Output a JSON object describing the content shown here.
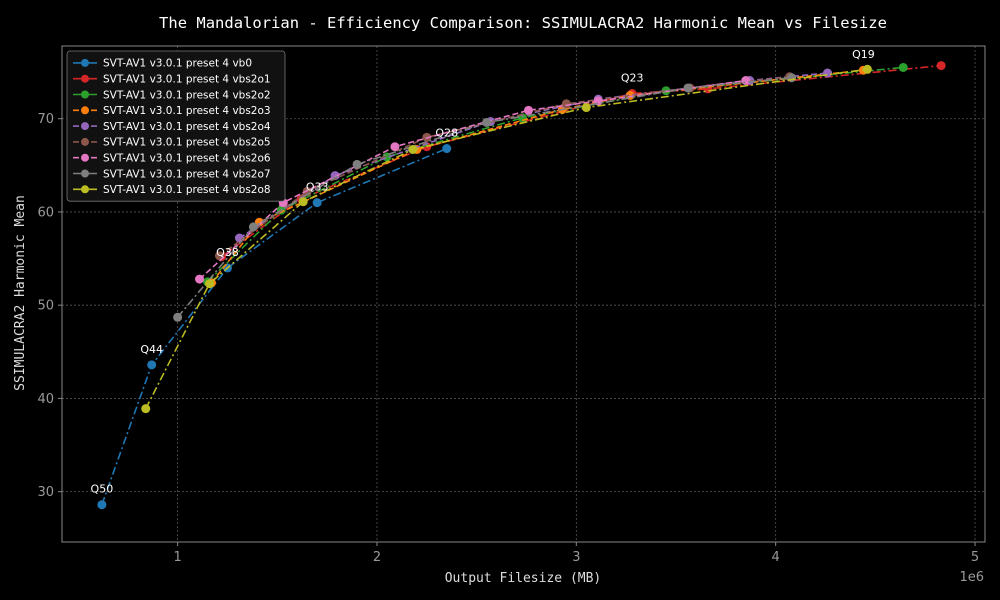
{
  "chart_data": {
    "type": "line",
    "title": "The Mandalorian - Efficiency Comparison: SSIMULACRA2 Harmonic Mean vs Filesize",
    "xlabel": "Output Filesize (MB)",
    "ylabel": "SSIMULACRA2 Harmonic Mean",
    "x_offset_label": "1e6",
    "xlim": [
      420000,
      5050000
    ],
    "ylim": [
      24.6,
      77.8
    ],
    "xticks": [
      1000000,
      2000000,
      3000000,
      4000000,
      5000000
    ],
    "xtick_labels": [
      "1",
      "2",
      "3",
      "4",
      "5"
    ],
    "yticks": [
      30,
      40,
      50,
      60,
      70
    ],
    "ytick_labels": [
      "30",
      "40",
      "50",
      "60",
      "70"
    ],
    "grid": true,
    "legend_position": "top-left",
    "series": [
      {
        "name": "SVT-AV1 v3.0.1 preset 4 vb0",
        "color": "#1f77b4",
        "dash": "dashdot",
        "x": [
          620000,
          870000,
          1250000,
          1700000,
          2350000
        ],
        "y": [
          28.6,
          43.6,
          54.0,
          61.0,
          66.8
        ]
      },
      {
        "name": "SVT-AV1 v3.0.1 preset 4 vbs2o1",
        "color": "#d62728",
        "dash": "dashdot",
        "x": [
          1220000,
          1620000,
          2250000,
          3280000,
          3660000,
          4830000
        ],
        "y": [
          55.2,
          61.4,
          67.0,
          72.7,
          73.2,
          75.7
        ]
      },
      {
        "name": "SVT-AV1 v3.0.1 preset 4 vbs2o2",
        "color": "#2ca02c",
        "dash": "dashdot",
        "x": [
          1150000,
          1520000,
          2050000,
          2730000,
          3450000,
          4640000
        ],
        "y": [
          52.5,
          60.2,
          65.9,
          70.1,
          73.0,
          75.5
        ]
      },
      {
        "name": "SVT-AV1 v3.0.1 preset 4 vbs2o3",
        "color": "#ff7f0e",
        "dash": "dashed",
        "x": [
          1170000,
          1410000,
          2200000,
          2930000,
          3270000,
          4440000
        ],
        "y": [
          52.4,
          58.9,
          66.7,
          71.0,
          72.5,
          75.2
        ]
      },
      {
        "name": "SVT-AV1 v3.0.1 preset 4 vbs2o4",
        "color": "#9467bd",
        "dash": "dashed",
        "x": [
          1310000,
          1790000,
          2570000,
          3110000,
          3870000,
          4260000
        ],
        "y": [
          57.2,
          63.9,
          69.7,
          72.1,
          74.1,
          74.9
        ]
      },
      {
        "name": "SVT-AV1 v3.0.1 preset 4 vbs2o5",
        "color": "#8c564b",
        "dash": "dashed",
        "x": [
          1210000,
          1650000,
          2250000,
          2950000,
          3570000,
          4070000
        ],
        "y": [
          55.3,
          62.2,
          68.0,
          71.6,
          73.3,
          74.5
        ]
      },
      {
        "name": "SVT-AV1 v3.0.1 preset 4 vbs2o6",
        "color": "#e377c2",
        "dash": "dashed",
        "x": [
          1110000,
          1530000,
          2090000,
          2760000,
          3110000,
          3850000
        ],
        "y": [
          52.8,
          61.0,
          67.0,
          70.9,
          71.9,
          74.1
        ]
      },
      {
        "name": "SVT-AV1 v3.0.1 preset 4 vbs2o7",
        "color": "#7f7f7f",
        "dash": "dashdot",
        "x": [
          1000000,
          1380000,
          1900000,
          2550000,
          3560000,
          4080000
        ],
        "y": [
          48.7,
          58.4,
          65.1,
          69.6,
          73.3,
          74.4
        ]
      },
      {
        "name": "SVT-AV1 v3.0.1 preset 4 vbs2o8",
        "color": "#bcbd22",
        "dash": "dashdot",
        "x": [
          840000,
          1160000,
          1630000,
          2180000,
          3050000,
          4460000
        ],
        "y": [
          38.9,
          52.3,
          61.1,
          66.7,
          71.2,
          75.3
        ]
      }
    ],
    "annotations": [
      {
        "text": "Q50",
        "x": 620000,
        "y": 28.6
      },
      {
        "text": "Q44",
        "x": 870000,
        "y": 43.6
      },
      {
        "text": "Q38",
        "x": 1250000,
        "y": 54.0
      },
      {
        "text": "Q33",
        "x": 1700000,
        "y": 61.0
      },
      {
        "text": "Q28",
        "x": 2350000,
        "y": 66.8
      },
      {
        "text": "Q23",
        "x": 3280000,
        "y": 72.7
      },
      {
        "text": "Q19",
        "x": 4440000,
        "y": 75.2
      }
    ]
  }
}
